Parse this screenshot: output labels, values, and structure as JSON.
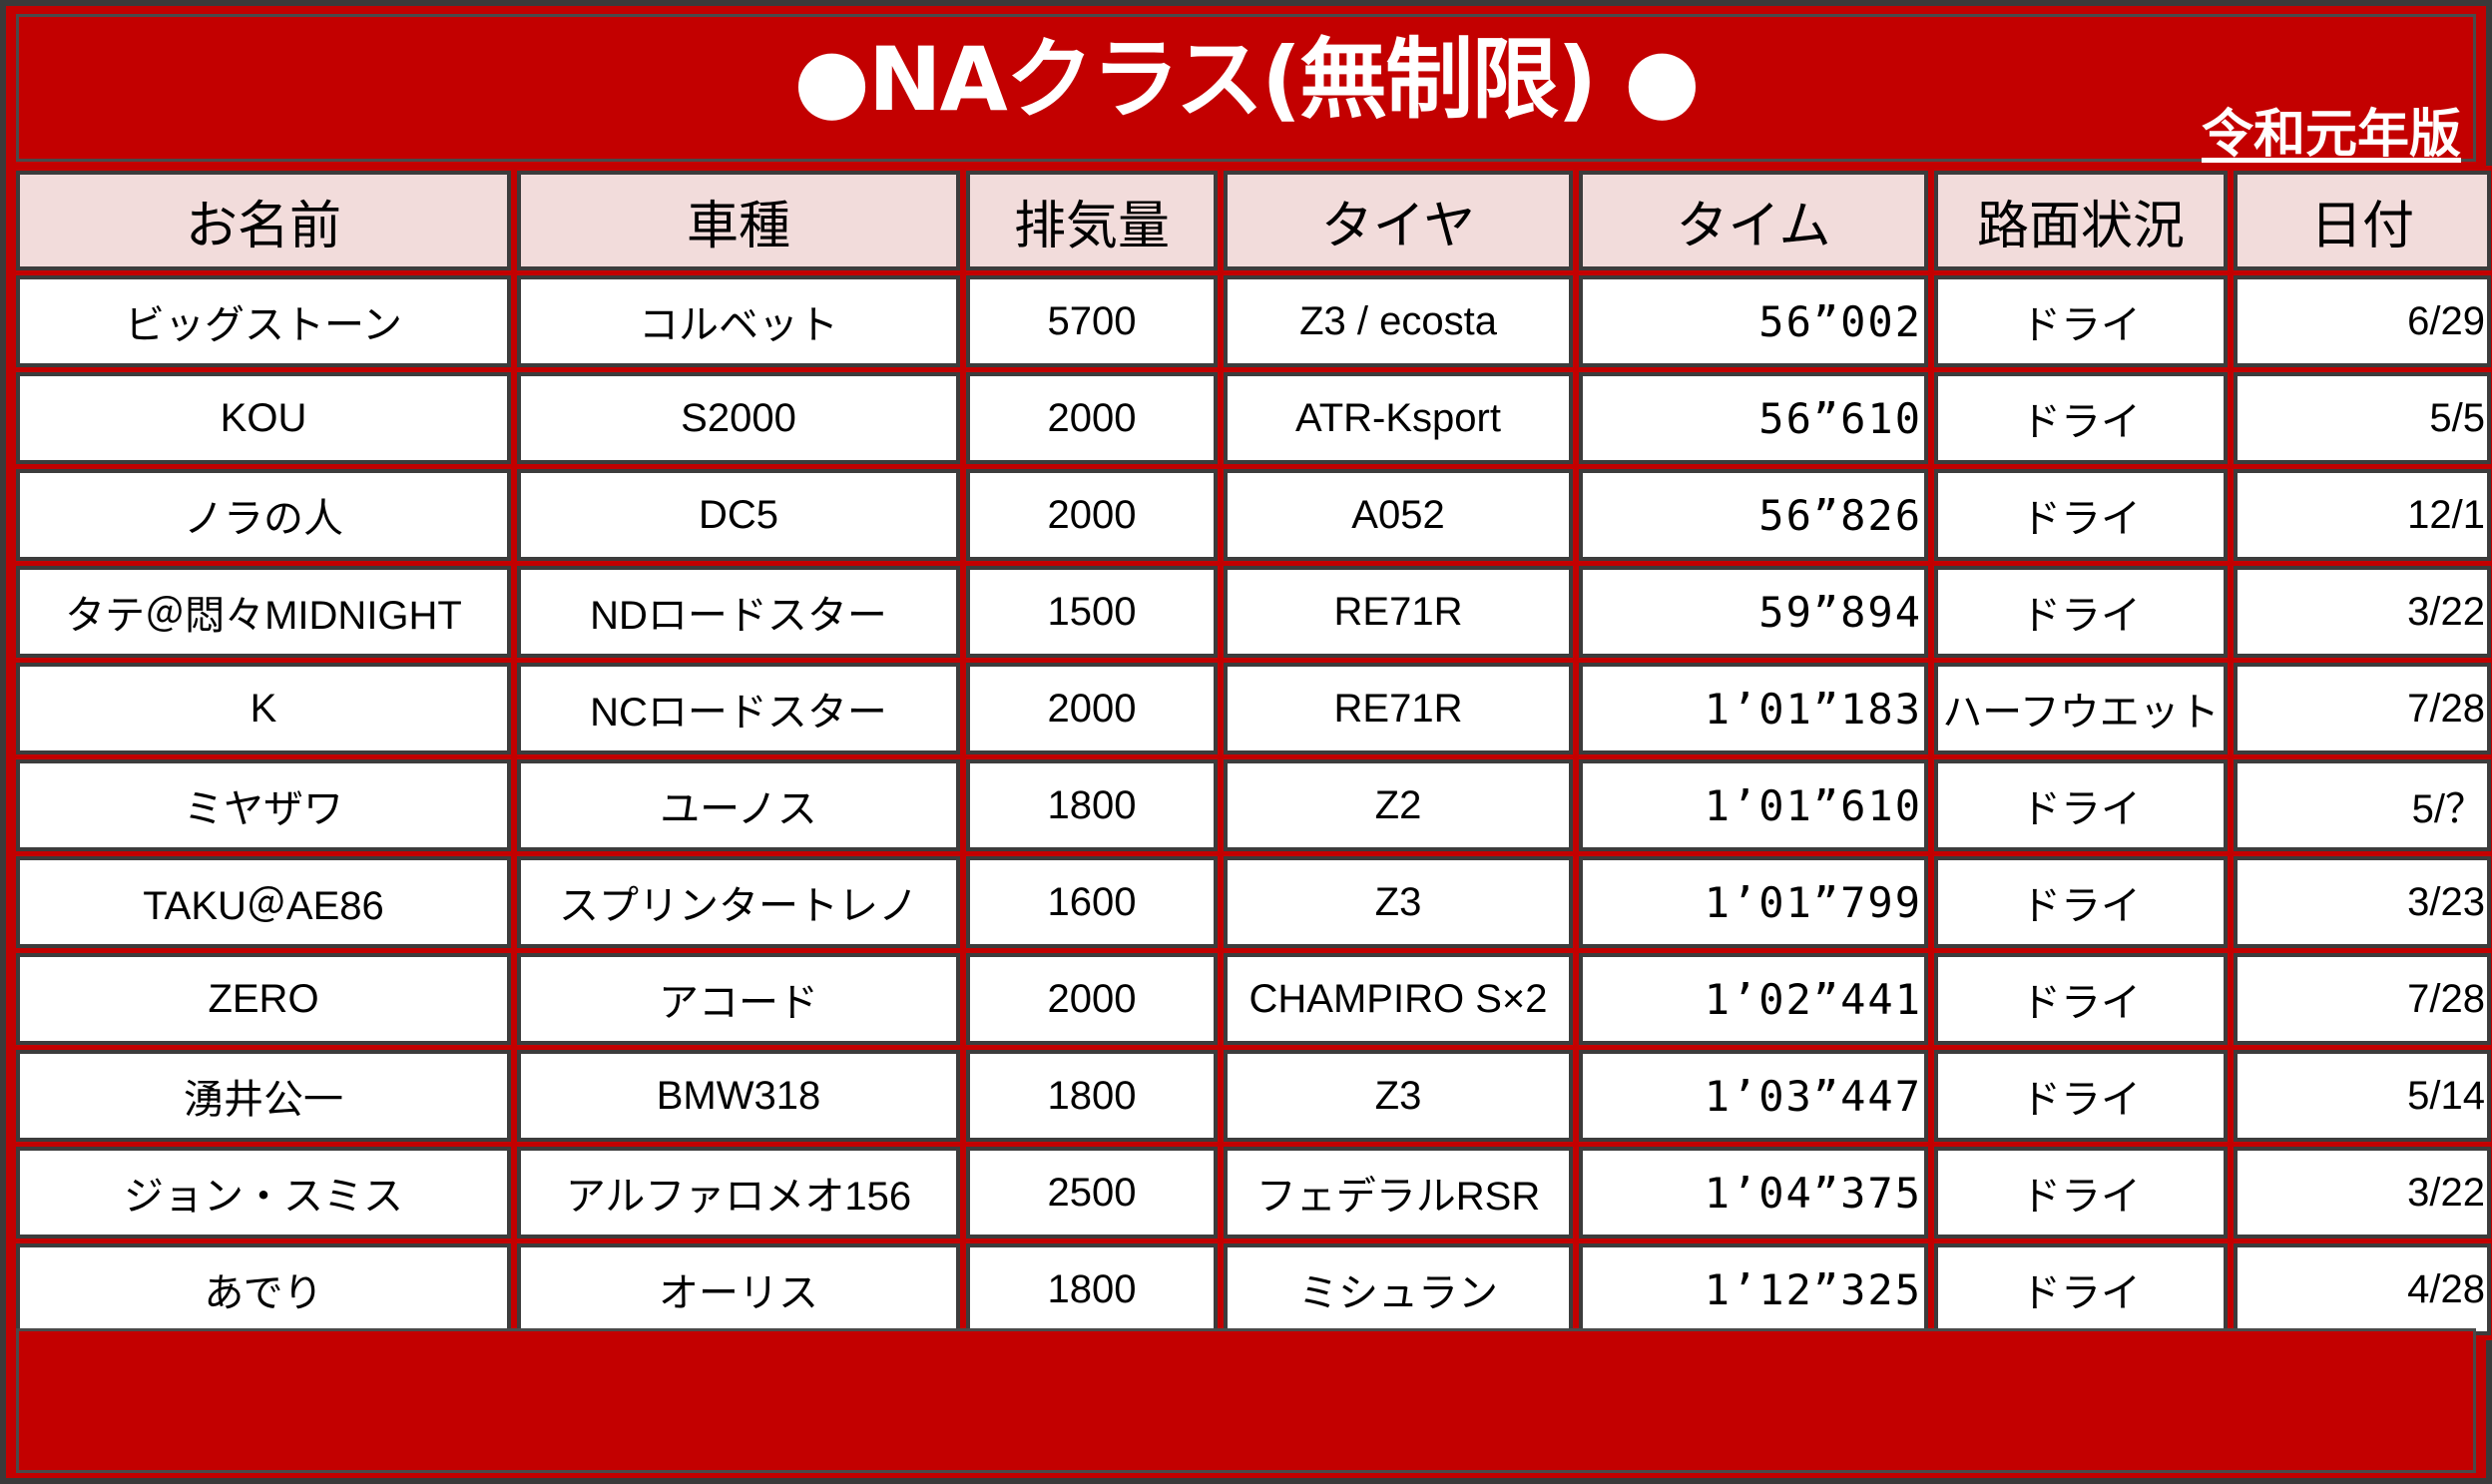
{
  "title": "●NAクラス(無制限) ●",
  "edition": "令和元年版",
  "columns": [
    "お名前",
    "車種",
    "排気量",
    "タイヤ",
    "タイム",
    "路面状況",
    "日付"
  ],
  "rows": [
    {
      "name": "ビッグストーン",
      "car": "コルベット",
      "displacement": "5700",
      "tire": "Z3 / ecosta",
      "time": "56”002",
      "surface": "ドライ",
      "date": "6/29"
    },
    {
      "name": "KOU",
      "car": "S2000",
      "displacement": "2000",
      "tire": "ATR-Ksport",
      "time": "56”610",
      "surface": "ドライ",
      "date": "5/5"
    },
    {
      "name": "ノラの人",
      "car": "DC5",
      "displacement": "2000",
      "tire": "A052",
      "time": "56”826",
      "surface": "ドライ",
      "date": "12/1"
    },
    {
      "name": "タテ＠悶々MIDNIGHT",
      "car": "NDロードスター",
      "displacement": "1500",
      "tire": "RE71R",
      "time": "59”894",
      "surface": "ドライ",
      "date": "3/22"
    },
    {
      "name": "K",
      "car": "NCロードスター",
      "displacement": "2000",
      "tire": "RE71R",
      "time": "1’01”183",
      "surface": "ハーフウエット",
      "date": "7/28"
    },
    {
      "name": "ミヤザワ",
      "car": "ユーノス",
      "displacement": "1800",
      "tire": "Z2",
      "time": "1’01”610",
      "surface": "ドライ",
      "date": "5/？"
    },
    {
      "name": "TAKU＠AE86",
      "car": "スプリンタートレノ",
      "displacement": "1600",
      "tire": "Z3",
      "time": "1’01”799",
      "surface": "ドライ",
      "date": "3/23"
    },
    {
      "name": "ZERO",
      "car": "アコード",
      "displacement": "2000",
      "tire": "CHAMPIRO S×2",
      "time": "1’02”441",
      "surface": "ドライ",
      "date": "7/28"
    },
    {
      "name": "湧井公一",
      "car": "BMW318",
      "displacement": "1800",
      "tire": "Z3",
      "time": "1’03”447",
      "surface": "ドライ",
      "date": "5/14"
    },
    {
      "name": "ジョン・スミス",
      "car": "アルファロメオ156",
      "displacement": "2500",
      "tire": "フェデラルRSR",
      "time": "1’04”375",
      "surface": "ドライ",
      "date": "3/22"
    },
    {
      "name": "あでり",
      "car": "オーリス",
      "displacement": "1800",
      "tire": "ミシュラン",
      "time": "1’12”325",
      "surface": "ドライ",
      "date": "4/28"
    }
  ],
  "colors": {
    "banner": "#c30000",
    "header_cell": "#f2dcdb",
    "cell": "#ffffff",
    "border": "#3c3c3c"
  }
}
